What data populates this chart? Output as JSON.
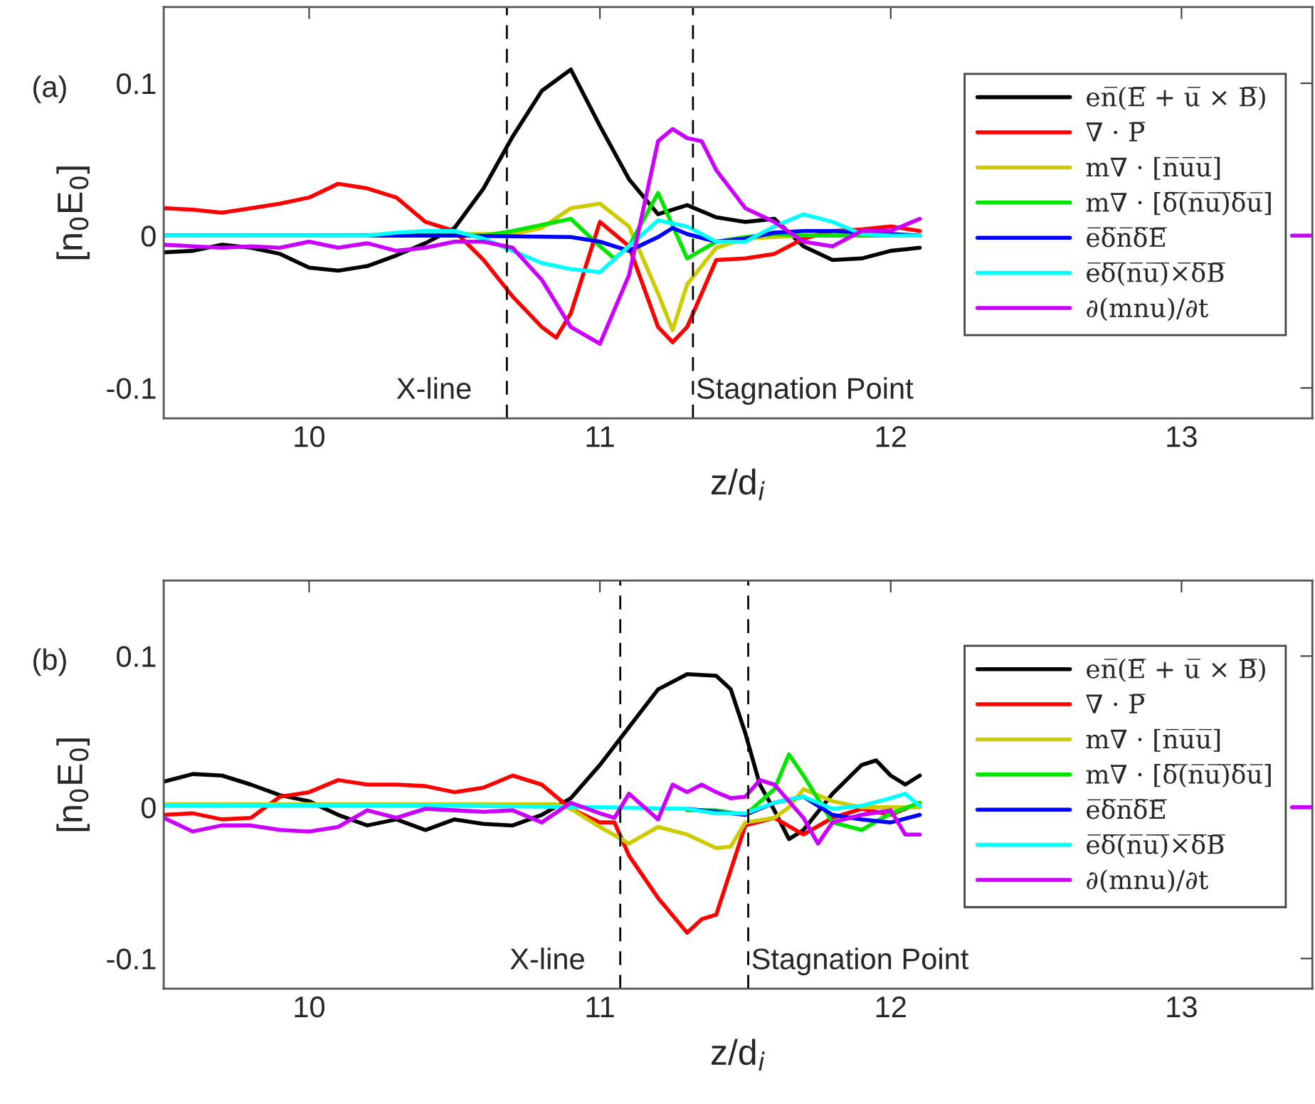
{
  "chart_data": [
    {
      "type": "line",
      "xlabel": "z/d$_{i}$",
      "ylabel": "[n$_{0}$E$_{0}$]",
      "annotations": [
        "(a)"
      ],
      "xlim": [
        9.5,
        13.45
      ],
      "xticks": [
        10,
        11,
        12,
        13
      ],
      "ylim": [
        -0.12,
        0.15
      ],
      "yticks": [
        {
          "value": -0.1,
          "label": "-0.1"
        },
        0,
        0.1
      ],
      "grid": false,
      "legend": "right",
      "line_style": "solid",
      "marker": "none",
      "ref_lines": [
        {
          "axis": "x",
          "value": 10.68,
          "label": "X-line",
          "color": "#000000",
          "line_style": "dashed"
        },
        {
          "axis": "x",
          "value": 11.32,
          "label": "Stagnation Point",
          "color": "#000000",
          "line_style": "dashed"
        }
      ],
      "series": [
        {
          "name": "en̅(E̅ + u̅ × B̅)",
          "color": "#000000",
          "x": [
            9.5,
            9.6,
            9.7,
            9.8,
            9.9,
            10.0,
            10.1,
            10.2,
            10.3,
            10.4,
            10.5,
            10.6,
            10.7,
            10.8,
            10.9,
            11.0,
            11.1,
            11.2,
            11.3,
            11.4,
            11.5,
            11.6,
            11.7,
            11.8,
            11.9,
            12.0,
            12.1
          ],
          "values": [
            -0.011,
            -0.01,
            -0.006,
            -0.008,
            -0.012,
            -0.021,
            -0.023,
            -0.02,
            -0.013,
            -0.005,
            0.005,
            0.031,
            0.065,
            0.095,
            0.109,
            0.072,
            0.037,
            0.014,
            0.02,
            0.012,
            0.009,
            0.011,
            -0.007,
            -0.016,
            -0.015,
            -0.01,
            -0.008
          ]
        },
        {
          "name": "∇ · P̅",
          "color": "#ff0000",
          "x": [
            9.5,
            9.6,
            9.7,
            9.8,
            9.9,
            10.0,
            10.1,
            10.2,
            10.3,
            10.4,
            10.5,
            10.6,
            10.7,
            10.8,
            10.85,
            10.9,
            11.0,
            11.1,
            11.2,
            11.25,
            11.3,
            11.4,
            11.5,
            11.6,
            11.7,
            11.8,
            11.9,
            12.0,
            12.1
          ],
          "values": [
            0.018,
            0.017,
            0.015,
            0.018,
            0.021,
            0.025,
            0.034,
            0.031,
            0.025,
            0.009,
            0.003,
            -0.016,
            -0.04,
            -0.06,
            -0.067,
            -0.051,
            0.009,
            -0.007,
            -0.06,
            -0.07,
            -0.06,
            -0.016,
            -0.015,
            -0.012,
            -0.002,
            0.003,
            0.004,
            0.006,
            0.003
          ]
        },
        {
          "name": "m∇ · [n̅u̅u̅]",
          "color": "#cccc00",
          "x": [
            9.5,
            10.0,
            10.5,
            10.7,
            10.8,
            10.9,
            11.0,
            11.1,
            11.2,
            11.25,
            11.3,
            11.4,
            11.5,
            11.6,
            11.7,
            12.1
          ],
          "values": [
            0,
            0,
            0.001,
            0.001,
            0.005,
            0.018,
            0.021,
            0.006,
            -0.038,
            -0.062,
            -0.032,
            -0.008,
            -0.002,
            -0.001,
            0,
            0
          ]
        },
        {
          "name": "m∇ · [δ̅(̅n̅u̅)̅δ̅u̅]",
          "color": "#00e600",
          "x": [
            9.5,
            10.0,
            10.6,
            10.7,
            10.8,
            10.9,
            11.0,
            11.05,
            11.1,
            11.2,
            11.3,
            11.4,
            11.5,
            11.6,
            11.7,
            12.1
          ],
          "values": [
            0,
            0,
            0,
            0.003,
            0.007,
            0.011,
            -0.007,
            -0.015,
            -0.007,
            0.028,
            -0.015,
            -0.004,
            -0.001,
            0.001,
            0,
            0
          ]
        },
        {
          "name": "e̅δ̅n̅δ̅E̅",
          "color": "#0000ff",
          "x": [
            9.5,
            10.0,
            10.5,
            10.9,
            11.0,
            11.1,
            11.2,
            11.25,
            11.3,
            11.4,
            11.5,
            11.6,
            11.7,
            11.8,
            12.0,
            12.1
          ],
          "values": [
            0,
            0,
            0,
            -0.001,
            -0.004,
            -0.01,
            -0.001,
            0.005,
            0.001,
            -0.004,
            -0.002,
            0.002,
            0.003,
            0.003,
            0.001,
            0
          ]
        },
        {
          "name": "e̅δ̅(̅n̅u̅)̅×̅δ̅B̅",
          "color": "#00ffff",
          "x": [
            9.5,
            10.0,
            10.2,
            10.3,
            10.4,
            10.5,
            10.6,
            10.7,
            10.8,
            10.9,
            11.0,
            11.1,
            11.2,
            11.3,
            11.4,
            11.5,
            11.6,
            11.7,
            11.8,
            11.9,
            12.0,
            12.1
          ],
          "values": [
            0,
            0,
            0,
            0.002,
            0.003,
            0.003,
            -0.002,
            -0.01,
            -0.018,
            -0.022,
            -0.024,
            -0.007,
            0.01,
            0.006,
            -0.004,
            -0.004,
            0.006,
            0.014,
            0.009,
            0.001,
            0,
            0
          ]
        },
        {
          "name": "∂(mnu)/∂t",
          "color": "#cc00ff",
          "x": [
            9.5,
            9.6,
            9.7,
            9.8,
            9.9,
            10.0,
            10.1,
            10.2,
            10.3,
            10.4,
            10.5,
            10.6,
            10.7,
            10.8,
            10.9,
            11.0,
            11.1,
            11.2,
            11.25,
            11.3,
            11.35,
            11.4,
            11.5,
            11.6,
            11.7,
            11.8,
            11.9,
            12.0,
            12.1,
            12.8,
            13.38,
            13.45
          ],
          "values": [
            -0.006,
            -0.007,
            -0.008,
            -0.007,
            -0.008,
            -0.004,
            -0.008,
            -0.005,
            -0.01,
            -0.008,
            -0.004,
            -0.004,
            -0.008,
            -0.029,
            -0.06,
            -0.071,
            -0.026,
            0.062,
            0.07,
            0.064,
            0.062,
            0.043,
            0.018,
            0.009,
            -0.004,
            -0.007,
            0.003,
            0.003,
            0.011,
            null,
            0,
            0
          ]
        }
      ]
    },
    {
      "type": "line",
      "xlabel": "z/d$_{i}$",
      "ylabel": "[n$_{0}$E$_{0}$]",
      "annotations": [
        "(b)"
      ],
      "xlim": [
        9.5,
        13.45
      ],
      "xticks": [
        10,
        11,
        12,
        13
      ],
      "ylim": [
        -0.12,
        0.15
      ],
      "yticks": [
        {
          "value": -0.1,
          "label": "-0.1"
        },
        0,
        0.1
      ],
      "grid": false,
      "legend": "right",
      "line_style": "solid",
      "marker": "none",
      "ref_lines": [
        {
          "axis": "x",
          "value": 11.07,
          "label": "X-line",
          "color": "#000000",
          "line_style": "dashed"
        },
        {
          "axis": "x",
          "value": 11.51,
          "label": "Stagnation Point",
          "color": "#000000",
          "line_style": "dashed"
        }
      ],
      "series": [
        {
          "name": "en̅(E̅ + u̅ × B̅)",
          "color": "#000000",
          "x": [
            9.5,
            9.6,
            9.7,
            9.8,
            9.9,
            10.0,
            10.1,
            10.2,
            10.3,
            10.4,
            10.5,
            10.6,
            10.7,
            10.8,
            10.9,
            11.0,
            11.1,
            11.2,
            11.3,
            11.4,
            11.45,
            11.5,
            11.55,
            11.6,
            11.65,
            11.7,
            11.8,
            11.9,
            11.95,
            12.0,
            12.05,
            12.1
          ],
          "values": [
            0.017,
            0.022,
            0.021,
            0.015,
            0.008,
            0.004,
            -0.005,
            -0.012,
            -0.008,
            -0.015,
            -0.008,
            -0.011,
            -0.012,
            -0.005,
            0.006,
            0.028,
            0.053,
            0.078,
            0.088,
            0.087,
            0.078,
            0.049,
            0.015,
            -0.002,
            -0.021,
            -0.015,
            0.009,
            0.028,
            0.031,
            0.021,
            0.015,
            0.021
          ]
        },
        {
          "name": "∇ · P̅",
          "color": "#ff0000",
          "x": [
            9.5,
            9.6,
            9.7,
            9.8,
            9.9,
            10.0,
            10.1,
            10.2,
            10.3,
            10.4,
            10.5,
            10.6,
            10.7,
            10.8,
            10.9,
            11.0,
            11.05,
            11.1,
            11.2,
            11.3,
            11.35,
            11.4,
            11.5,
            11.6,
            11.7,
            11.8,
            11.9,
            12.0,
            12.1
          ],
          "values": [
            -0.005,
            -0.004,
            -0.008,
            -0.007,
            0.007,
            0.01,
            0.018,
            0.015,
            0.015,
            0.014,
            0.01,
            0.013,
            0.021,
            0.015,
            -0.001,
            -0.01,
            -0.01,
            -0.032,
            -0.06,
            -0.083,
            -0.074,
            -0.071,
            -0.012,
            -0.007,
            -0.018,
            -0.007,
            -0.001,
            -0.005,
            0.003
          ]
        },
        {
          "name": "m∇ · [n̅u̅u̅]",
          "color": "#cccc00",
          "x": [
            9.5,
            10.0,
            10.5,
            10.85,
            10.9,
            11.0,
            11.1,
            11.2,
            11.3,
            11.4,
            11.45,
            11.5,
            11.6,
            11.65,
            11.7,
            11.8,
            11.9,
            12.0,
            12.1
          ],
          "values": [
            0.002,
            0.002,
            0.002,
            0.002,
            -0.001,
            -0.013,
            -0.024,
            -0.013,
            -0.018,
            -0.027,
            -0.026,
            -0.01,
            -0.007,
            0,
            0.012,
            0.004,
            0,
            0,
            0
          ]
        },
        {
          "name": "m∇ · [δ̅(̅n̅u̅)̅δ̅u̅]",
          "color": "#00e600",
          "x": [
            11.3,
            11.4,
            11.5,
            11.6,
            11.65,
            11.7,
            11.8,
            11.9,
            12.0,
            12.1
          ],
          "values": [
            -0.002,
            -0.002,
            -0.005,
            0.012,
            0.035,
            0.021,
            -0.01,
            -0.015,
            -0.004,
            0.003
          ]
        },
        {
          "name": "e̅δ̅n̅δ̅E̅",
          "color": "#0000ff",
          "x": [
            11.3,
            11.4,
            11.5,
            11.6,
            11.7,
            11.8,
            11.9,
            12.0,
            12.1
          ],
          "values": [
            -0.001,
            -0.003,
            -0.005,
            0.003,
            0.007,
            -0.005,
            -0.008,
            -0.01,
            -0.005
          ]
        },
        {
          "name": "e̅δ̅(̅n̅u̅)̅×̅δ̅B̅",
          "color": "#00ffff",
          "x": [
            9.5,
            10.0,
            10.5,
            11.0,
            11.3,
            11.4,
            11.5,
            11.6,
            11.7,
            11.8,
            11.9,
            12.0,
            12.05,
            12.1
          ],
          "values": [
            0.001,
            0.001,
            0.001,
            0,
            -0.001,
            -0.004,
            -0.004,
            0.003,
            0.007,
            -0.001,
            0.001,
            0.006,
            0.009,
            0.001
          ]
        },
        {
          "name": "∂(mnu)/∂t",
          "color": "#cc00ff",
          "x": [
            9.5,
            9.6,
            9.7,
            9.8,
            9.9,
            10.0,
            10.1,
            10.2,
            10.3,
            10.4,
            10.5,
            10.6,
            10.7,
            10.8,
            10.9,
            11.0,
            11.05,
            11.1,
            11.2,
            11.25,
            11.3,
            11.35,
            11.4,
            11.45,
            11.5,
            11.55,
            11.6,
            11.7,
            11.75,
            11.8,
            11.9,
            12.0,
            12.05,
            12.1,
            12.8,
            13.38,
            13.45
          ],
          "values": [
            -0.007,
            -0.016,
            -0.012,
            -0.012,
            -0.015,
            -0.016,
            -0.013,
            -0.002,
            -0.007,
            -0.001,
            -0.002,
            -0.003,
            -0.002,
            -0.01,
            0.003,
            -0.004,
            -0.007,
            0.009,
            -0.008,
            0.015,
            0.01,
            0.015,
            0.01,
            0.006,
            0.007,
            0.018,
            0.015,
            -0.007,
            -0.024,
            -0.01,
            -0.005,
            -0.002,
            -0.018,
            -0.018,
            null,
            0,
            0
          ]
        }
      ]
    }
  ]
}
